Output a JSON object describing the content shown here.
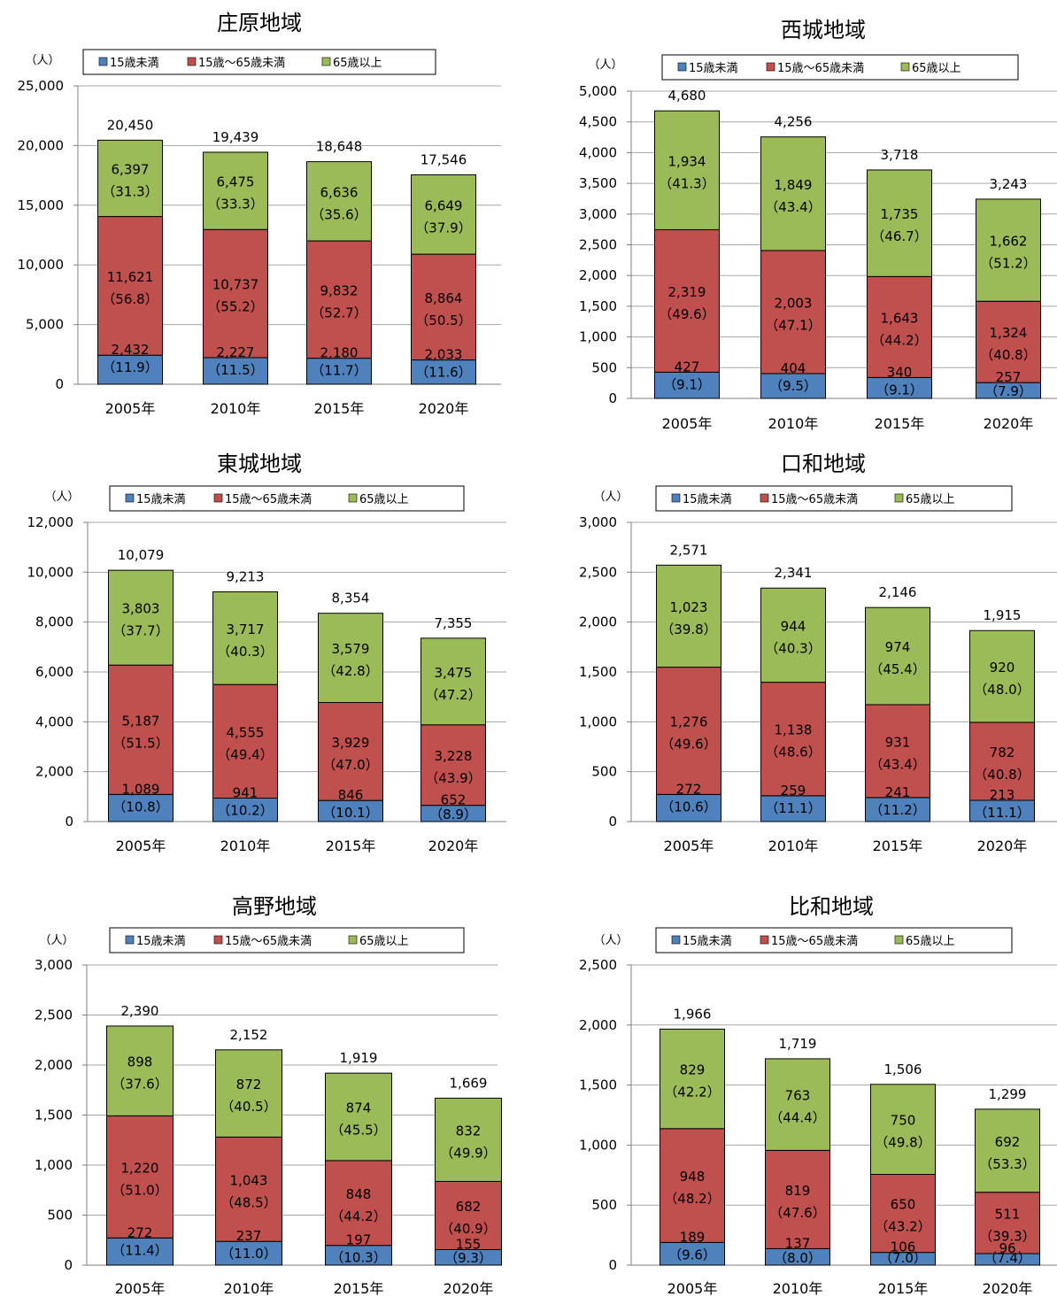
{
  "categories": [
    "2005年",
    "2010年",
    "2015年",
    "2020年"
  ],
  "unit_label": "（人）",
  "legend": [
    "15歳未満",
    "15歳～65歳未満",
    "65歳以上"
  ],
  "colors": {
    "young": "#4f81bd",
    "working": "#c0504d",
    "elderly": "#9bbb59",
    "grid": "#a6a6a6",
    "axis": "#808080"
  },
  "chart_data": [
    {
      "type": "bar",
      "stacked": true,
      "title": "庄原地域",
      "categories": [
        "2005年",
        "2010年",
        "2015年",
        "2020年"
      ],
      "ylim": [
        0,
        25000
      ],
      "yticks": [
        "0",
        "5,000",
        "10,000",
        "15,000",
        "20,000",
        "25,000"
      ],
      "totals": [
        "20,450",
        "19,439",
        "18,648",
        "17,546"
      ],
      "series": [
        {
          "name": "15歳未満",
          "values": [
            2432,
            2227,
            2180,
            2033
          ],
          "labels": [
            "2,432",
            "2,227",
            "2,180",
            "2,033"
          ],
          "pct": [
            "（11.9）",
            "（11.5）",
            "（11.7）",
            "（11.6）"
          ]
        },
        {
          "name": "15歳～65歳未満",
          "values": [
            11621,
            10737,
            9832,
            8864
          ],
          "labels": [
            "11,621",
            "10,737",
            "9,832",
            "8,864"
          ],
          "pct": [
            "（56.8）",
            "（55.2）",
            "（52.7）",
            "（50.5）"
          ]
        },
        {
          "name": "65歳以上",
          "values": [
            6397,
            6475,
            6636,
            6649
          ],
          "labels": [
            "6,397",
            "6,475",
            "6,636",
            "6,649"
          ],
          "pct": [
            "（31.3）",
            "（33.3）",
            "（35.6）",
            "（37.9）"
          ]
        }
      ]
    },
    {
      "type": "bar",
      "stacked": true,
      "title": "西城地域",
      "categories": [
        "2005年",
        "2010年",
        "2015年",
        "2020年"
      ],
      "ylim": [
        0,
        5000
      ],
      "yticks": [
        "0",
        "500",
        "1,000",
        "1,500",
        "2,000",
        "2,500",
        "3,000",
        "3,500",
        "4,000",
        "4,500",
        "5,000"
      ],
      "totals": [
        "4,680",
        "4,256",
        "3,718",
        "3,243"
      ],
      "series": [
        {
          "name": "15歳未満",
          "values": [
            427,
            404,
            340,
            257
          ],
          "labels": [
            "427",
            "404",
            "340",
            "257"
          ],
          "pct": [
            "（9.1）",
            "（9.5）",
            "（9.1）",
            "（7.9）"
          ]
        },
        {
          "name": "15歳～65歳未満",
          "values": [
            2319,
            2003,
            1643,
            1324
          ],
          "labels": [
            "2,319",
            "2,003",
            "1,643",
            "1,324"
          ],
          "pct": [
            "（49.6）",
            "（47.1）",
            "（44.2）",
            "（40.8）"
          ]
        },
        {
          "name": "65歳以上",
          "values": [
            1934,
            1849,
            1735,
            1662
          ],
          "labels": [
            "1,934",
            "1,849",
            "1,735",
            "1,662"
          ],
          "pct": [
            "（41.3）",
            "（43.4）",
            "（46.7）",
            "（51.2）"
          ]
        }
      ]
    },
    {
      "type": "bar",
      "stacked": true,
      "title": "東城地域",
      "categories": [
        "2005年",
        "2010年",
        "2015年",
        "2020年"
      ],
      "ylim": [
        0,
        12000
      ],
      "yticks": [
        "0",
        "2,000",
        "4,000",
        "6,000",
        "8,000",
        "10,000",
        "12,000"
      ],
      "totals": [
        "10,079",
        "9,213",
        "8,354",
        "7,355"
      ],
      "series": [
        {
          "name": "15歳未満",
          "values": [
            1089,
            941,
            846,
            652
          ],
          "labels": [
            "1,089",
            "941",
            "846",
            "652"
          ],
          "pct": [
            "（10.8）",
            "（10.2）",
            "（10.1）",
            "（8.9）"
          ]
        },
        {
          "name": "15歳～65歳未満",
          "values": [
            5187,
            4555,
            3929,
            3228
          ],
          "labels": [
            "5,187",
            "4,555",
            "3,929",
            "3,228"
          ],
          "pct": [
            "（51.5）",
            "（49.4）",
            "（47.0）",
            "（43.9）"
          ]
        },
        {
          "name": "65歳以上",
          "values": [
            3803,
            3717,
            3579,
            3475
          ],
          "labels": [
            "3,803",
            "3,717",
            "3,579",
            "3,475"
          ],
          "pct": [
            "（37.7）",
            "（40.3）",
            "（42.8）",
            "（47.2）"
          ]
        }
      ]
    },
    {
      "type": "bar",
      "stacked": true,
      "title": "口和地域",
      "categories": [
        "2005年",
        "2010年",
        "2015年",
        "2020年"
      ],
      "ylim": [
        0,
        3000
      ],
      "yticks": [
        "0",
        "500",
        "1,000",
        "1,500",
        "2,000",
        "2,500",
        "3,000"
      ],
      "totals": [
        "2,571",
        "2,341",
        "2,146",
        "1,915"
      ],
      "series": [
        {
          "name": "15歳未満",
          "values": [
            272,
            259,
            241,
            213
          ],
          "labels": [
            "272",
            "259",
            "241",
            "213"
          ],
          "pct": [
            "（10.6）",
            "（11.1）",
            "（11.2）",
            "（11.1）"
          ]
        },
        {
          "name": "15歳～65歳未満",
          "values": [
            1276,
            1138,
            931,
            782
          ],
          "labels": [
            "1,276",
            "1,138",
            "931",
            "782"
          ],
          "pct": [
            "（49.6）",
            "（48.6）",
            "（43.4）",
            "（40.8）"
          ]
        },
        {
          "name": "65歳以上",
          "values": [
            1023,
            944,
            974,
            920
          ],
          "labels": [
            "1,023",
            "944",
            "974",
            "920"
          ],
          "pct": [
            "（39.8）",
            "（40.3）",
            "（45.4）",
            "（48.0）"
          ]
        }
      ]
    },
    {
      "type": "bar",
      "stacked": true,
      "title": "高野地域",
      "categories": [
        "2005年",
        "2010年",
        "2015年",
        "2020年"
      ],
      "ylim": [
        0,
        3000
      ],
      "yticks": [
        "0",
        "500",
        "1,000",
        "1,500",
        "2,000",
        "2,500",
        "3,000"
      ],
      "totals": [
        "2,390",
        "2,152",
        "1,919",
        "1,669"
      ],
      "series": [
        {
          "name": "15歳未満",
          "values": [
            272,
            237,
            197,
            155
          ],
          "labels": [
            "272",
            "237",
            "197",
            "155"
          ],
          "pct": [
            "（11.4）",
            "（11.0）",
            "（10.3）",
            "（9.3）"
          ]
        },
        {
          "name": "15歳～65歳未満",
          "values": [
            1220,
            1043,
            848,
            682
          ],
          "labels": [
            "1,220",
            "1,043",
            "848",
            "682"
          ],
          "pct": [
            "（51.0）",
            "（48.5）",
            "（44.2）",
            "（40.9）"
          ]
        },
        {
          "name": "65歳以上",
          "values": [
            898,
            872,
            874,
            832
          ],
          "labels": [
            "898",
            "872",
            "874",
            "832"
          ],
          "pct": [
            "（37.6）",
            "（40.5）",
            "（45.5）",
            "（49.9）"
          ]
        }
      ]
    },
    {
      "type": "bar",
      "stacked": true,
      "title": "比和地域",
      "categories": [
        "2005年",
        "2010年",
        "2015年",
        "2020年"
      ],
      "ylim": [
        0,
        2500
      ],
      "yticks": [
        "0",
        "500",
        "1,000",
        "1,500",
        "2,000",
        "2,500"
      ],
      "totals": [
        "1,966",
        "1,719",
        "1,506",
        "1,299"
      ],
      "series": [
        {
          "name": "15歳未満",
          "values": [
            189,
            137,
            106,
            96
          ],
          "labels": [
            "189",
            "137",
            "106",
            "96"
          ],
          "pct": [
            "（9.6）",
            "（8.0）",
            "（7.0）",
            "（7.4）"
          ]
        },
        {
          "name": "15歳～65歳未満",
          "values": [
            948,
            819,
            650,
            511
          ],
          "labels": [
            "948",
            "819",
            "650",
            "511"
          ],
          "pct": [
            "（48.2）",
            "（47.6）",
            "（43.2）",
            "（39.3）"
          ]
        },
        {
          "name": "65歳以上",
          "values": [
            829,
            763,
            750,
            692
          ],
          "labels": [
            "829",
            "763",
            "750",
            "692"
          ],
          "pct": [
            "（42.2）",
            "（44.4）",
            "（49.8）",
            "（53.3）"
          ]
        }
      ]
    }
  ]
}
